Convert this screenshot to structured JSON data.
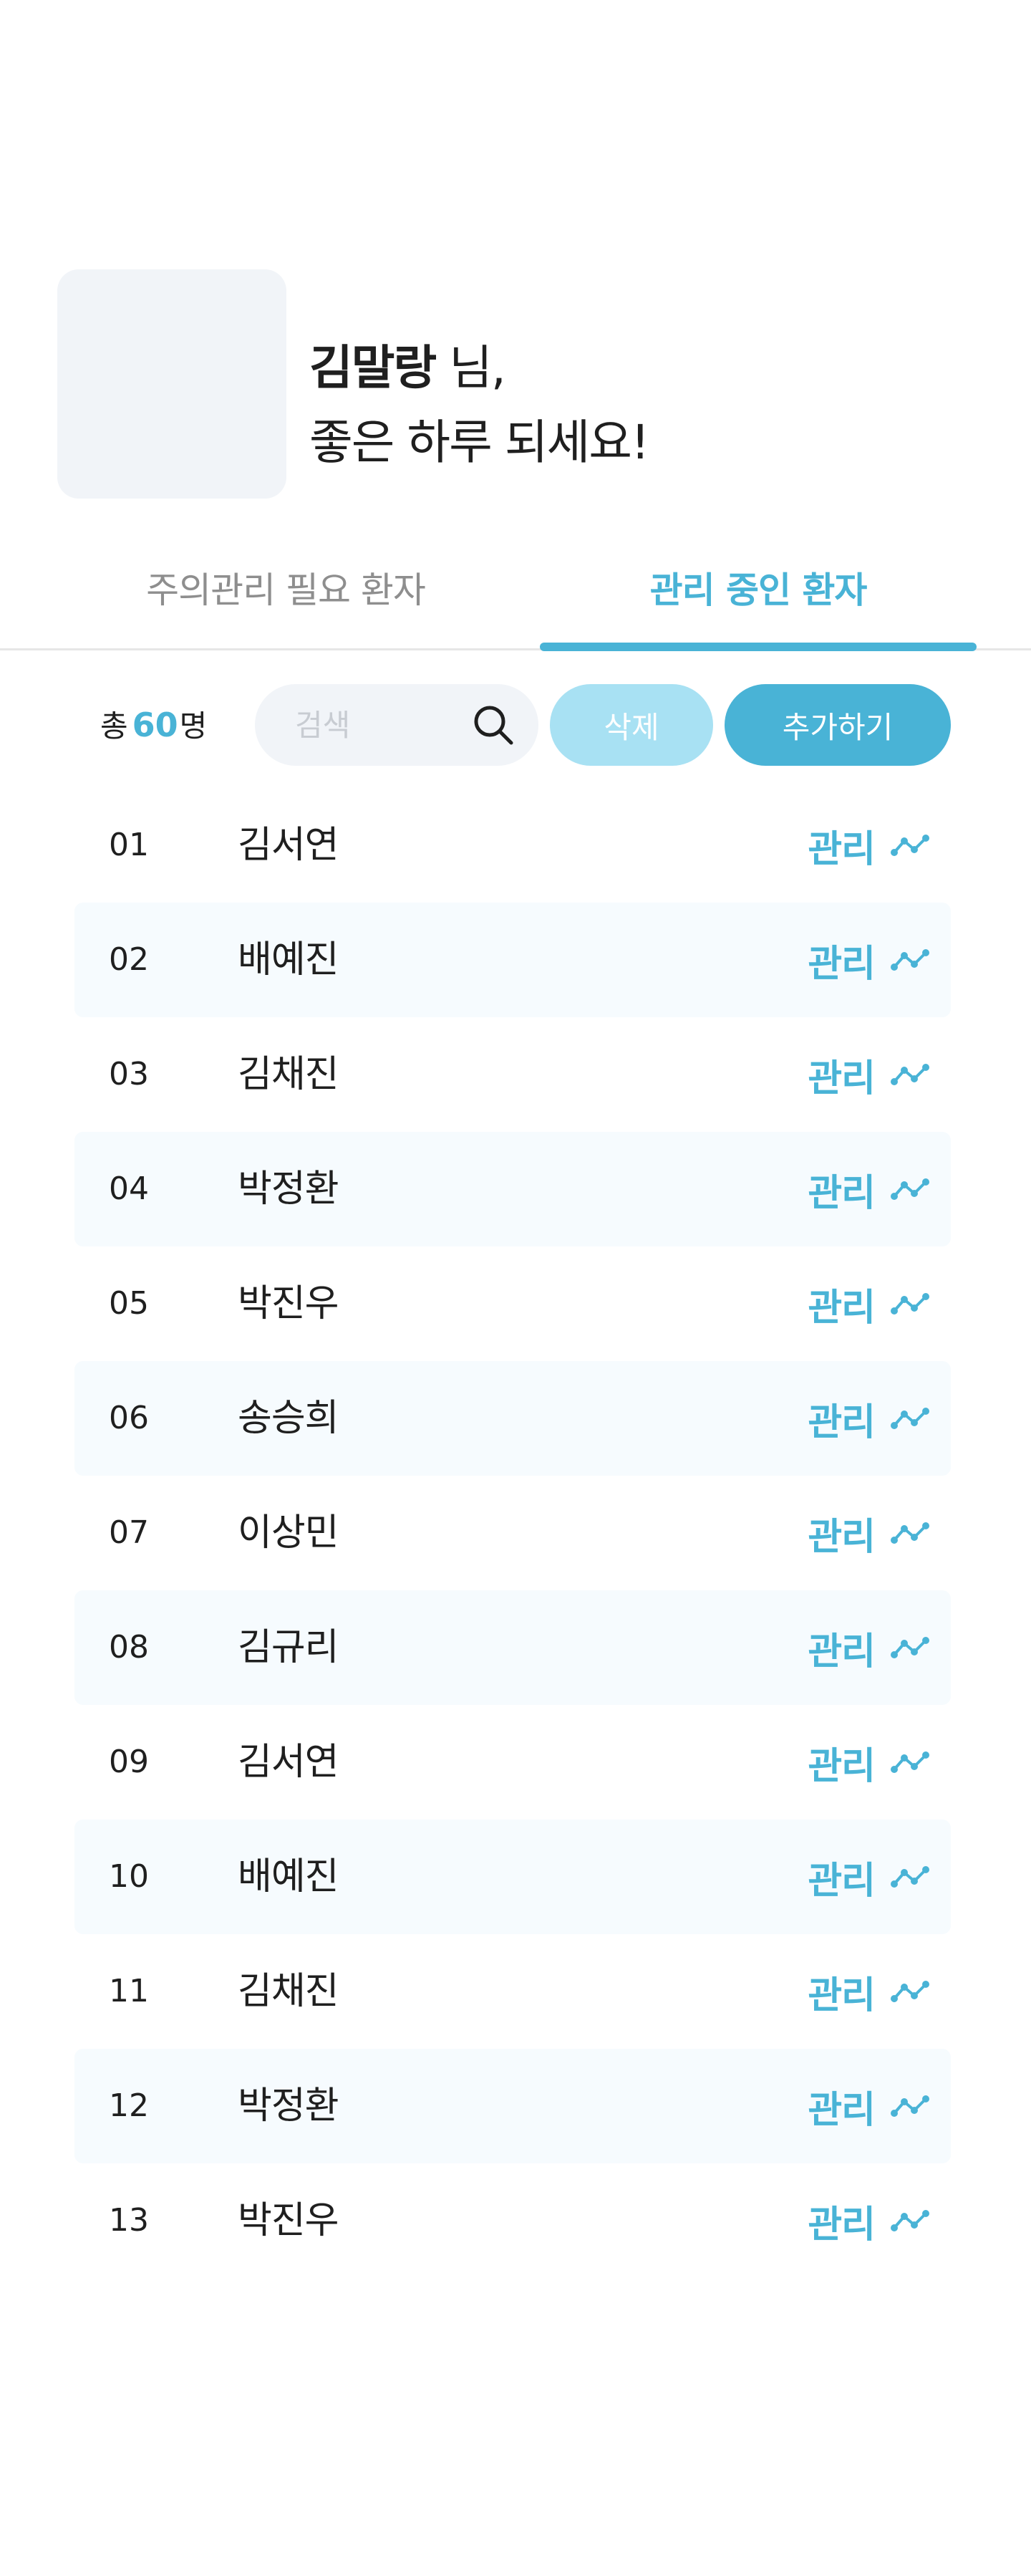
{
  "profile": {
    "name": "김말랑",
    "name_suffix": " 님,",
    "greeting": "좋은 하루 되세요!"
  },
  "tabs": [
    {
      "label": "주의관리 필요 환자",
      "active": false
    },
    {
      "label": "관리 중인 환자",
      "active": true
    }
  ],
  "toolbar": {
    "total_prefix": "총",
    "total_count": "60",
    "total_suffix": "명",
    "search_placeholder": "검색",
    "search_icon": "search-icon",
    "delete_label": "삭제",
    "add_label": "추가하기"
  },
  "patients": [
    {
      "num": "01",
      "name": "김서연",
      "action": "관리"
    },
    {
      "num": "02",
      "name": "배예진",
      "action": "관리"
    },
    {
      "num": "03",
      "name": "김채진",
      "action": "관리"
    },
    {
      "num": "04",
      "name": "박정환",
      "action": "관리"
    },
    {
      "num": "05",
      "name": "박진우",
      "action": "관리"
    },
    {
      "num": "06",
      "name": "송승희",
      "action": "관리"
    },
    {
      "num": "07",
      "name": "이상민",
      "action": "관리"
    },
    {
      "num": "08",
      "name": "김규리",
      "action": "관리"
    },
    {
      "num": "09",
      "name": "김서연",
      "action": "관리"
    },
    {
      "num": "10",
      "name": "배예진",
      "action": "관리"
    },
    {
      "num": "11",
      "name": "김채진",
      "action": "관리"
    },
    {
      "num": "12",
      "name": "박정환",
      "action": "관리"
    },
    {
      "num": "13",
      "name": "박진우",
      "action": "관리"
    }
  ],
  "colors": {
    "accent": "#49b3d6",
    "accent_light": "#a8e1f3",
    "row_alt": "#f6fbfe",
    "avatar_bg": "#f1f4f8",
    "text": "#1f1f1f",
    "muted": "#8e8e8e"
  },
  "icons": {
    "trend": "trend-line-icon"
  }
}
